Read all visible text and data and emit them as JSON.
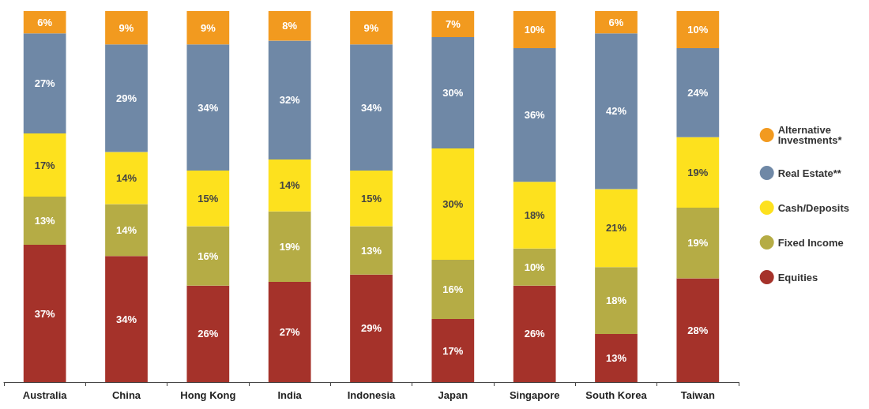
{
  "chart_data": {
    "type": "bar",
    "stacked": true,
    "legend": "right",
    "categories": [
      "Australia",
      "China",
      "Hong Kong",
      "India",
      "Indonesia",
      "Japan",
      "Singapore",
      "South Korea",
      "Taiwan"
    ],
    "series": [
      {
        "name": "Equities",
        "color": "#a5322a",
        "values": [
          37,
          34,
          26,
          27,
          29,
          17,
          26,
          13,
          28
        ],
        "value_labels": [
          "37%",
          "34%",
          "26%",
          "27%",
          "29%",
          "17%",
          "26%",
          "13%",
          "28%"
        ]
      },
      {
        "name": "Fixed Income",
        "color": "#b5ac45",
        "values": [
          13,
          14,
          16,
          19,
          13,
          16,
          10,
          18,
          19
        ],
        "value_labels": [
          "13%",
          "14%",
          "16%",
          "19%",
          "13%",
          "16%",
          "10%",
          "18%",
          "19%"
        ]
      },
      {
        "name": "Cash/Deposits",
        "color": "#fde11e",
        "values": [
          17,
          14,
          15,
          14,
          15,
          30,
          18,
          21,
          19
        ],
        "value_labels": [
          "17%",
          "14%",
          "15%",
          "14%",
          "15%",
          "30%",
          "18%",
          "21%",
          "19%"
        ]
      },
      {
        "name": "Real Estate**",
        "color": "#6f88a6",
        "values": [
          27,
          29,
          34,
          32,
          34,
          30,
          36,
          42,
          24
        ],
        "value_labels": [
          "27%",
          "29%",
          "34%",
          "32%",
          "34%",
          "30%",
          "36%",
          "42%",
          "24%"
        ]
      },
      {
        "name": "Alternative Investments*",
        "color": "#f29a1f",
        "values": [
          6,
          9,
          9,
          8,
          9,
          7,
          10,
          6,
          10
        ],
        "value_labels": [
          "6%",
          "9%",
          "9%",
          "8%",
          "9%",
          "7%",
          "10%",
          "6%",
          "10%"
        ]
      }
    ]
  }
}
